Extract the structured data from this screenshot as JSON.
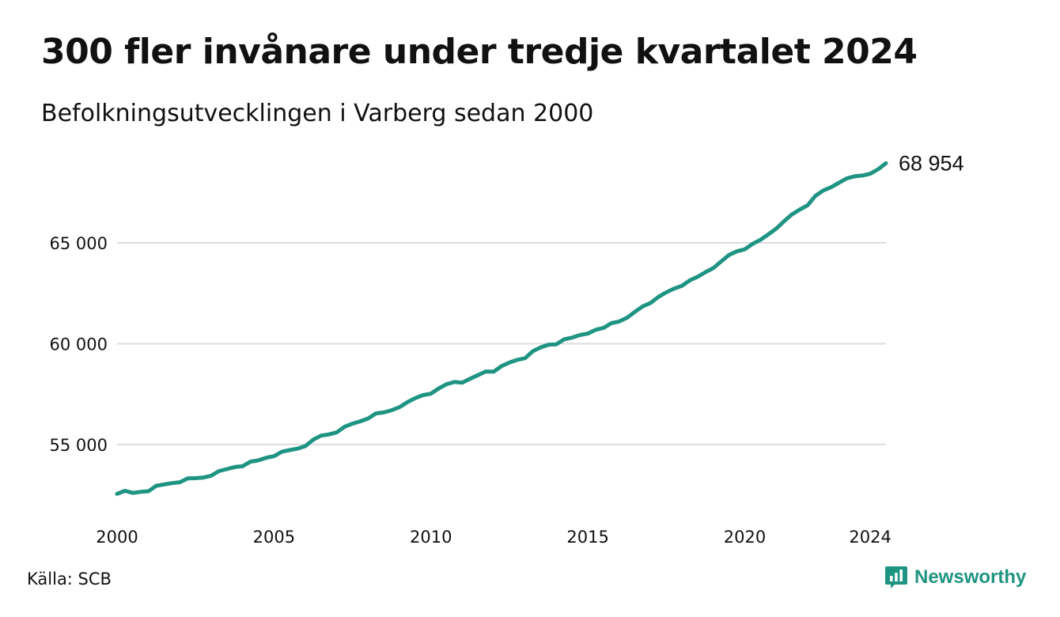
{
  "title": "300 fler invånare under tredje kvartalet 2024",
  "subtitle": "Befolkningsutvecklingen i Varberg sedan 2000",
  "source": "Källa: SCB",
  "brand": {
    "name": "Newsworthy",
    "icon": "newsworthy-logo-icon",
    "color": "#1f9482"
  },
  "colors": {
    "line": "#1f9482",
    "grid": "#dddddd",
    "text": "#111111"
  },
  "chart_data": {
    "type": "line",
    "title": "300 fler invånare under tredje kvartalet 2024",
    "subtitle": "Befolkningsutvecklingen i Varberg sedan 2000",
    "xlabel": "",
    "ylabel": "",
    "x_ticks": [
      "2000",
      "2005",
      "2010",
      "2015",
      "2020",
      "2024"
    ],
    "x_tick_values": [
      2000,
      2005,
      2010,
      2015,
      2020,
      2024
    ],
    "y_ticks": [
      "55 000",
      "60 000",
      "65 000"
    ],
    "y_tick_values": [
      55000,
      60000,
      65000
    ],
    "xlim": [
      2000,
      2024.5
    ],
    "ylim": [
      51700,
      69200
    ],
    "grid": "horizontal",
    "end_label": "68 954",
    "series": [
      {
        "name": "",
        "color": "#1f9482",
        "x": [
          2000.0,
          2000.25,
          2000.5,
          2000.75,
          2001.0,
          2001.25,
          2001.5,
          2001.75,
          2002.0,
          2002.25,
          2002.5,
          2002.75,
          2003.0,
          2003.25,
          2003.5,
          2003.75,
          2004.0,
          2004.25,
          2004.5,
          2004.75,
          2005.0,
          2005.25,
          2005.5,
          2005.75,
          2006.0,
          2006.25,
          2006.5,
          2006.75,
          2007.0,
          2007.25,
          2007.5,
          2007.75,
          2008.0,
          2008.25,
          2008.5,
          2008.75,
          2009.0,
          2009.25,
          2009.5,
          2009.75,
          2010.0,
          2010.25,
          2010.5,
          2010.75,
          2011.0,
          2011.25,
          2011.5,
          2011.75,
          2012.0,
          2012.25,
          2012.5,
          2012.75,
          2013.0,
          2013.25,
          2013.5,
          2013.75,
          2014.0,
          2014.25,
          2014.5,
          2014.75,
          2015.0,
          2015.25,
          2015.5,
          2015.75,
          2016.0,
          2016.25,
          2016.5,
          2016.75,
          2017.0,
          2017.25,
          2017.5,
          2017.75,
          2018.0,
          2018.25,
          2018.5,
          2018.75,
          2019.0,
          2019.25,
          2019.5,
          2019.75,
          2020.0,
          2020.25,
          2020.5,
          2020.75,
          2021.0,
          2021.25,
          2021.5,
          2021.75,
          2022.0,
          2022.25,
          2022.5,
          2022.75,
          2023.0,
          2023.25,
          2023.5,
          2023.75,
          2024.0,
          2024.25,
          2024.5
        ],
        "values": [
          52550,
          52700,
          52600,
          52650,
          52680,
          52950,
          53020,
          53080,
          53130,
          53320,
          53330,
          53360,
          53450,
          53680,
          53780,
          53880,
          53920,
          54150,
          54210,
          54340,
          54420,
          54640,
          54720,
          54790,
          54920,
          55240,
          55440,
          55500,
          55600,
          55880,
          56030,
          56150,
          56290,
          56540,
          56590,
          56700,
          56850,
          57100,
          57300,
          57450,
          57520,
          57780,
          57990,
          58100,
          58070,
          58260,
          58440,
          58620,
          58610,
          58890,
          59060,
          59200,
          59280,
          59630,
          59820,
          59950,
          59970,
          60220,
          60300,
          60430,
          60500,
          60690,
          60780,
          61020,
          61100,
          61290,
          61580,
          61850,
          62020,
          62320,
          62550,
          62730,
          62870,
          63140,
          63320,
          63550,
          63750,
          64080,
          64400,
          64580,
          64680,
          64950,
          65150,
          65420,
          65700,
          66070,
          66410,
          66650,
          66860,
          67330,
          67600,
          67760,
          67980,
          68200,
          68300,
          68340,
          68430,
          68650,
          68954
        ]
      }
    ]
  }
}
